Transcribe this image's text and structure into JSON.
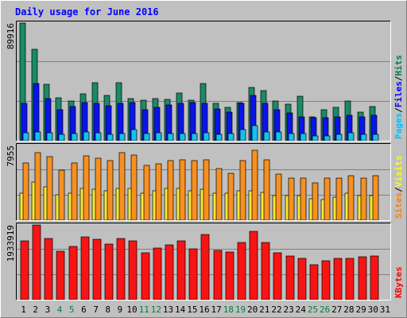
{
  "chart_data": {
    "type": "bar",
    "title": "Daily usage for June 2016",
    "categories": [
      "1",
      "2",
      "3",
      "4",
      "5",
      "6",
      "7",
      "8",
      "9",
      "10",
      "11",
      "12",
      "13",
      "14",
      "15",
      "16",
      "17",
      "18",
      "19",
      "20",
      "21",
      "22",
      "23",
      "24",
      "25",
      "26",
      "27",
      "28",
      "29",
      "30",
      "31"
    ],
    "weekend_days": [
      "4",
      "5",
      "11",
      "12",
      "18",
      "19",
      "25",
      "26"
    ],
    "panels": [
      {
        "id": "hits-files-pages",
        "ymax": 89916,
        "ymax_label": "89916",
        "legend": [
          {
            "name": "Pages",
            "color": "#00c0ff"
          },
          {
            "name": "Files",
            "color": "#0000ff"
          },
          {
            "name": "Hits",
            "color": "#008040"
          }
        ],
        "series": [
          {
            "name": "Hits",
            "color": "#1a8a66",
            "values": [
              89916,
              69600,
              43000,
              32900,
              30400,
              35600,
              44600,
              34700,
              44600,
              32400,
              31000,
              32400,
              31800,
              36500,
              31000,
              44000,
              28700,
              25700,
              29200,
              40800,
              38400,
              30400,
              27800,
              34200,
              18400,
              23400,
              25700,
              30400,
              22000,
              26200,
              null
            ]
          },
          {
            "name": "Files",
            "color": "#0a14e8",
            "values": [
              28700,
              44000,
              32400,
              23400,
              26200,
              29200,
              28700,
              26800,
              28700,
              29200,
              23400,
              25700,
              27200,
              28700,
              29200,
              28700,
              24300,
              22000,
              28700,
              34700,
              28700,
              23400,
              21200,
              18400,
              17500,
              17500,
              18400,
              19300,
              18400,
              19300,
              null
            ]
          },
          {
            "name": "Pages",
            "color": "#16c0f0",
            "values": [
              5900,
              6800,
              6300,
              4800,
              5200,
              6800,
              6300,
              4800,
              5200,
              8300,
              5600,
              5900,
              5600,
              5200,
              5600,
              5900,
              4800,
              5600,
              8700,
              11600,
              6800,
              6800,
              5200,
              5200,
              3500,
              3900,
              4800,
              5900,
              4800,
              4800,
              null
            ]
          }
        ]
      },
      {
        "id": "visits-sites",
        "ymax": 7955,
        "ymax_label": "7955",
        "legend": [
          {
            "name": "Sites",
            "color": "#ff8000"
          },
          {
            "name": "Visits",
            "color": "#ffff00"
          }
        ],
        "series": [
          {
            "name": "Visits",
            "color": "#f8e830",
            "values": [
              2860,
              4080,
              3530,
              2720,
              2860,
              3400,
              3270,
              3130,
              3400,
              3400,
              2860,
              3130,
              3400,
              3400,
              3130,
              3270,
              2860,
              2860,
              3130,
              3130,
              2990,
              2590,
              2590,
              2590,
              2310,
              2180,
              2450,
              2860,
              2590,
              2590,
              null
            ]
          },
          {
            "name": "Sites",
            "color": "#f89020",
            "values": [
              6110,
              7210,
              6800,
              5360,
              6110,
              6870,
              6600,
              6320,
              7200,
              6940,
              5840,
              6050,
              6320,
              6460,
              6320,
              6460,
              5500,
              5020,
              6320,
              7480,
              6460,
              4900,
              4490,
              4490,
              3990,
              4490,
              4490,
              4760,
              4490,
              4760,
              null
            ]
          }
        ]
      },
      {
        "id": "kbytes",
        "ymax": 1933919,
        "ymax_label": "1933919",
        "legend": [
          {
            "name": "KBytes",
            "color": "#ff0000"
          }
        ],
        "series": [
          {
            "name": "KBytes",
            "color": "#f81414",
            "values": [
              1520000,
              1933919,
              1590000,
              1250000,
              1380000,
              1630000,
              1560000,
              1450000,
              1590000,
              1520000,
              1210000,
              1340000,
              1420000,
              1520000,
              1320000,
              1690000,
              1280000,
              1240000,
              1490000,
              1760000,
              1490000,
              1210000,
              1140000,
              1080000,
              900000,
              1010000,
              1080000,
              1060000,
              1120000,
              1140000,
              null
            ]
          }
        ]
      }
    ]
  }
}
